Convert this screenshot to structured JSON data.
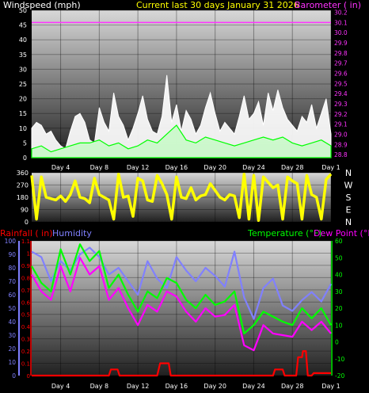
{
  "header": {
    "left_label": "Windspeed (mph)",
    "center_label": "Current last 30 days January 31 2026",
    "right_label": "Barometer ( in)"
  },
  "colors": {
    "wind_avg": "#ffffff",
    "wind_gust": "#00ff00",
    "barometer": "#ff33ff",
    "direction": "#ffff00",
    "rainfall": "#ff0000",
    "humidity": "#8080ff",
    "temperature": "#00ff00",
    "dewpoint": "#ff00ff"
  },
  "chart_data": [
    {
      "type": "area",
      "name": "wind_barometer",
      "y_left_label": "Windspeed (mph)",
      "y_right_label": "Barometer ( in)",
      "y_left_ticks": [
        "0",
        "5",
        "10",
        "15",
        "20",
        "25",
        "30",
        "35",
        "40",
        "45",
        "50"
      ],
      "y_right_ticks": [
        "28.8",
        "28.9",
        "29.0",
        "29.1",
        "29.2",
        "29.3",
        "29.4",
        "29.5",
        "29.6",
        "29.7",
        "29.8",
        "29.9",
        "30.0",
        "30.1",
        "30.2"
      ],
      "x_ticks": [
        "Day 4",
        "Day 8",
        "Day 12",
        "Day 16",
        "Day 20",
        "Day 24",
        "Day 28",
        "Day 1"
      ],
      "ylim_left": [
        0,
        50
      ],
      "ylim_right": [
        28.77,
        30.22
      ],
      "xlim": [
        1,
        32
      ],
      "series": [
        {
          "name": "Windspeed",
          "color": "#ffffff",
          "x": [
            1,
            1.5,
            2,
            2.5,
            3,
            3.5,
            4,
            4.5,
            5,
            5.5,
            6,
            6.5,
            7,
            7.5,
            8,
            8.5,
            9,
            9.5,
            10,
            10.5,
            11,
            11.5,
            12,
            12.5,
            13,
            13.5,
            14,
            14.5,
            15,
            15.5,
            16,
            16.5,
            17,
            17.5,
            18,
            18.5,
            19,
            19.5,
            20,
            20.5,
            21,
            21.5,
            22,
            22.5,
            23,
            23.5,
            24,
            24.5,
            25,
            25.5,
            26,
            26.5,
            27,
            27.5,
            28,
            28.5,
            29,
            29.5,
            30,
            30.5,
            31,
            31.5,
            32
          ],
          "values": [
            10,
            12,
            11,
            8,
            9,
            6,
            4,
            3,
            9,
            14,
            15,
            12,
            6,
            5,
            17,
            12,
            9,
            22,
            14,
            11,
            6,
            10,
            15,
            21,
            13,
            9,
            8,
            14,
            28,
            12,
            18,
            9,
            16,
            13,
            8,
            11,
            17,
            22,
            15,
            9,
            12,
            10,
            8,
            14,
            21,
            13,
            15,
            19,
            11,
            22,
            16,
            23,
            17,
            13,
            11,
            9,
            14,
            12,
            18,
            10,
            15,
            20,
            8
          ]
        },
        {
          "name": "Gust",
          "color": "#00ff00",
          "x": [
            1,
            2,
            3,
            4,
            5,
            6,
            7,
            8,
            9,
            10,
            11,
            12,
            13,
            14,
            15,
            16,
            17,
            18,
            19,
            20,
            21,
            22,
            23,
            24,
            25,
            26,
            27,
            28,
            29,
            30,
            31,
            32
          ],
          "values": [
            3,
            4,
            2,
            3,
            4,
            5,
            5,
            6,
            4,
            5,
            3,
            4,
            6,
            5,
            8,
            11,
            6,
            5,
            7,
            6,
            5,
            4,
            5,
            6,
            7,
            6,
            7,
            5,
            4,
            5,
            6,
            4
          ]
        },
        {
          "name": "Barometer",
          "color": "#ff33ff",
          "x": [
            1,
            32
          ],
          "values": [
            30.1,
            30.1
          ]
        }
      ]
    },
    {
      "type": "line",
      "name": "wind_direction",
      "y_ticks": [
        "0",
        "90",
        "180",
        "270",
        "360"
      ],
      "ylim": [
        0,
        360
      ],
      "compass_labels": [
        "N",
        "W",
        "S",
        "E",
        "N"
      ],
      "x_ticks": [
        "Day 4",
        "Day 8",
        "Day 12",
        "Day 16",
        "Day 20",
        "Day 24",
        "Day 28",
        "Day 1"
      ],
      "xlim": [
        1,
        32
      ],
      "series": [
        {
          "name": "Direction",
          "color": "#ffff00",
          "x": [
            1,
            1.5,
            2,
            2.5,
            3,
            3.5,
            4,
            4.5,
            5,
            5.5,
            6,
            6.5,
            7,
            7.5,
            8,
            8.5,
            9,
            9.5,
            10,
            10.5,
            11,
            11.5,
            12,
            12.5,
            13,
            13.5,
            14,
            14.5,
            15,
            15.5,
            16,
            16.5,
            17,
            17.5,
            18,
            18.5,
            19,
            19.5,
            20,
            20.5,
            21,
            21.5,
            22,
            22.5,
            23,
            23.5,
            24,
            24.5,
            25,
            25.5,
            26,
            26.5,
            27,
            27.5,
            28,
            28.5,
            29,
            29.5,
            30,
            30.5,
            31,
            31.5,
            32
          ],
          "values": [
            340,
            20,
            330,
            180,
            170,
            160,
            190,
            150,
            200,
            300,
            180,
            170,
            140,
            320,
            200,
            180,
            160,
            20,
            350,
            180,
            190,
            40,
            320,
            300,
            160,
            150,
            340,
            280,
            200,
            20,
            330,
            180,
            170,
            250,
            160,
            190,
            200,
            280,
            230,
            180,
            160,
            200,
            190,
            30,
            350,
            20,
            340,
            10,
            330,
            290,
            250,
            270,
            20,
            330,
            300,
            280,
            20,
            340,
            200,
            180,
            20,
            310,
            350
          ]
        }
      ]
    },
    {
      "type": "line",
      "name": "rain_humidity_temperature",
      "y_left1_label": "Rainfall ( in)",
      "y_left2_label": "Humidity",
      "y_right_label1": "Temperature (°F)",
      "y_right_label2": "Dew Point (°F)",
      "rain_ticks": [
        "0",
        "0.1",
        "0.2",
        "0.3",
        "0.4",
        "0.5",
        "0.6",
        "0.7",
        "0.8",
        "0.9",
        "1",
        "1.1"
      ],
      "humidity_ticks": [
        "0",
        "10",
        "20",
        "30",
        "40",
        "50",
        "60",
        "70",
        "80",
        "90",
        "100"
      ],
      "temp_ticks": [
        "-20",
        "-10",
        "0",
        "10",
        "20",
        "30",
        "40",
        "50",
        "60"
      ],
      "rain_ylim": [
        0,
        1.1
      ],
      "humidity_ylim": [
        0,
        100
      ],
      "temp_ylim": [
        -20,
        60
      ],
      "x_ticks": [
        "Day 4",
        "Day 8",
        "Day 12",
        "Day 16",
        "Day 20",
        "Day 24",
        "Day 28",
        "Day 1"
      ],
      "xlim": [
        1,
        32
      ],
      "series": [
        {
          "name": "Rainfall",
          "color": "#ff0000",
          "x": [
            1,
            9,
            9.2,
            9.9,
            10.1,
            14,
            14.3,
            15.2,
            15.4,
            26,
            26.2,
            27,
            27.2,
            28.4,
            28.6,
            29,
            29.1,
            29.4,
            29.6,
            30,
            30.2,
            32
          ],
          "values": [
            0,
            0,
            0.05,
            0.05,
            0,
            0,
            0.1,
            0.1,
            0,
            0,
            0.05,
            0.05,
            0,
            0,
            0.15,
            0.15,
            0.2,
            0.2,
            0,
            0,
            0.02,
            0.02
          ]
        },
        {
          "name": "Humidity",
          "color": "#8080ff",
          "x": [
            1,
            2,
            3,
            4,
            5,
            6,
            7,
            8,
            9,
            10,
            11,
            12,
            13,
            14,
            15,
            16,
            17,
            18,
            19,
            20,
            21,
            22,
            23,
            24,
            25,
            26,
            27,
            28,
            29,
            30,
            31,
            32
          ],
          "values": [
            92,
            88,
            70,
            85,
            78,
            90,
            95,
            88,
            75,
            80,
            70,
            60,
            85,
            72,
            65,
            88,
            78,
            70,
            80,
            74,
            66,
            92,
            58,
            42,
            65,
            72,
            52,
            48,
            56,
            62,
            55,
            68
          ]
        },
        {
          "name": "Temperature",
          "color": "#00ff00",
          "x": [
            1,
            2,
            3,
            4,
            5,
            6,
            7,
            8,
            9,
            10,
            11,
            12,
            13,
            14,
            15,
            16,
            17,
            18,
            19,
            20,
            21,
            22,
            23,
            24,
            25,
            26,
            27,
            28,
            29,
            30,
            31,
            32
          ],
          "values": [
            45,
            35,
            30,
            55,
            40,
            58,
            48,
            54,
            32,
            40,
            28,
            18,
            30,
            26,
            38,
            35,
            25,
            20,
            28,
            22,
            24,
            30,
            5,
            10,
            18,
            15,
            12,
            10,
            20,
            14,
            20,
            10
          ]
        },
        {
          "name": "Dew Point",
          "color": "#ff00ff",
          "x": [
            1,
            2,
            3,
            4,
            5,
            6,
            7,
            8,
            9,
            10,
            11,
            12,
            13,
            14,
            15,
            16,
            17,
            18,
            19,
            20,
            21,
            22,
            23,
            24,
            25,
            26,
            27,
            28,
            29,
            30,
            31,
            32
          ],
          "values": [
            40,
            30,
            25,
            45,
            30,
            50,
            40,
            45,
            25,
            32,
            20,
            10,
            22,
            18,
            30,
            27,
            18,
            12,
            20,
            15,
            16,
            22,
            -2,
            -5,
            10,
            5,
            4,
            3,
            12,
            7,
            12,
            5
          ]
        }
      ]
    }
  ]
}
